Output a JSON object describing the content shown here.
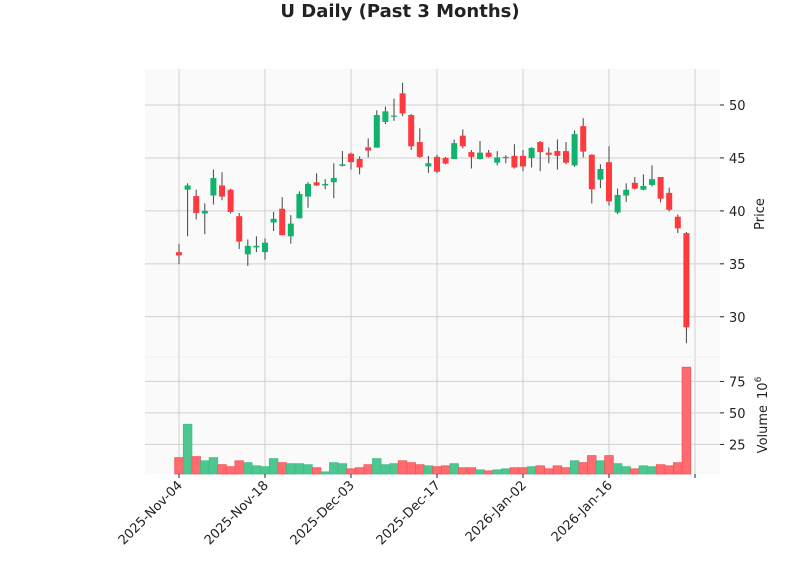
{
  "chart_data": {
    "type": "candlestick",
    "title": "U Daily (Past 3 Months)",
    "price_ylabel": "Price",
    "volume_ylabel": "Volume",
    "volume_unit": "10",
    "volume_unit_exp": "6",
    "price_ylim": [
      26.2,
      53.4
    ],
    "volume_ylim": [
      1.5,
      94.4
    ],
    "price_ticks": [
      30,
      35,
      40,
      45,
      50
    ],
    "volume_ticks": [
      25,
      50,
      75
    ],
    "x_tick_labels": [
      "2025-Nov-04",
      "2025-Nov-18",
      "2025-Dec-03",
      "2025-Dec-17",
      "2026-Jan-02",
      "2026-Jan-16",
      ""
    ],
    "grid": true,
    "colors": {
      "up": "#0fb36c",
      "down": "#fe3a3f",
      "volume_up": "#4cc790",
      "volume_down": "#ff6b6e",
      "wick": "#444444",
      "background": "#fafafa",
      "grid": "#d0d0d0"
    },
    "dates": [
      "2025-11-04",
      "2025-11-05",
      "2025-11-06",
      "2025-11-07",
      "2025-11-10",
      "2025-11-11",
      "2025-11-12",
      "2025-11-13",
      "2025-11-14",
      "2025-11-17",
      "2025-11-18",
      "2025-11-19",
      "2025-11-20",
      "2025-11-21",
      "2025-11-24",
      "2025-11-25",
      "2025-11-26",
      "2025-11-28",
      "2025-12-01",
      "2025-12-02",
      "2025-12-03",
      "2025-12-04",
      "2025-12-05",
      "2025-12-08",
      "2025-12-09",
      "2025-12-10",
      "2025-12-11",
      "2025-12-12",
      "2025-12-15",
      "2025-12-16",
      "2025-12-17",
      "2025-12-18",
      "2025-12-19",
      "2025-12-22",
      "2025-12-23",
      "2025-12-24",
      "2025-12-26",
      "2025-12-29",
      "2025-12-30",
      "2025-12-31",
      "2026-01-02",
      "2026-01-05",
      "2026-01-06",
      "2026-01-07",
      "2026-01-08",
      "2026-01-09",
      "2026-01-12",
      "2026-01-13",
      "2026-01-14",
      "2026-01-15",
      "2026-01-16",
      "2026-01-20",
      "2026-01-21",
      "2026-01-22",
      "2026-01-23",
      "2026-01-26",
      "2026-01-27",
      "2026-01-28",
      "2026-01-29",
      "2026-01-30"
    ],
    "ohlc": [
      [
        36.1,
        36.9,
        35.0,
        35.8
      ],
      [
        42.0,
        42.6,
        37.6,
        42.4
      ],
      [
        41.4,
        42.0,
        39.2,
        39.8
      ],
      [
        39.75,
        40.7,
        37.8,
        40.0
      ],
      [
        41.45,
        43.9,
        40.6,
        43.1
      ],
      [
        42.4,
        43.65,
        41.0,
        41.35
      ],
      [
        42.0,
        42.1,
        39.75,
        39.9
      ],
      [
        39.5,
        39.8,
        36.4,
        37.1
      ],
      [
        35.9,
        37.3,
        34.8,
        36.7
      ],
      [
        36.55,
        37.6,
        36.1,
        36.7
      ],
      [
        36.1,
        37.4,
        35.4,
        37.0
      ],
      [
        38.9,
        39.9,
        38.1,
        39.25
      ],
      [
        40.2,
        41.3,
        37.7,
        37.7
      ],
      [
        37.6,
        39.6,
        36.9,
        38.8
      ],
      [
        39.3,
        41.85,
        39.3,
        41.6
      ],
      [
        41.35,
        42.7,
        40.3,
        42.55
      ],
      [
        42.7,
        43.55,
        42.35,
        42.4
      ],
      [
        42.4,
        43.0,
        42.05,
        42.55
      ],
      [
        42.7,
        44.5,
        41.2,
        43.1
      ],
      [
        44.25,
        45.65,
        44.2,
        44.4
      ],
      [
        45.4,
        45.5,
        43.9,
        44.6
      ],
      [
        44.9,
        45.15,
        43.45,
        44.1
      ],
      [
        46.0,
        46.85,
        45.05,
        45.7
      ],
      [
        45.97,
        49.5,
        45.97,
        49.05
      ],
      [
        48.4,
        49.85,
        48.2,
        49.4
      ],
      [
        48.9,
        50.6,
        48.5,
        49.0
      ],
      [
        51.1,
        52.1,
        48.95,
        49.2
      ],
      [
        49.05,
        49.15,
        45.75,
        46.1
      ],
      [
        46.5,
        47.8,
        45.0,
        45.1
      ],
      [
        44.2,
        45.2,
        43.6,
        44.5
      ],
      [
        45.1,
        45.3,
        43.55,
        43.7
      ],
      [
        45.0,
        45.1,
        44.4,
        44.47
      ],
      [
        44.9,
        46.75,
        44.9,
        46.4
      ],
      [
        47.1,
        47.7,
        45.9,
        46.1
      ],
      [
        45.55,
        45.75,
        44.0,
        45.1
      ],
      [
        44.9,
        46.6,
        44.85,
        45.5
      ],
      [
        45.5,
        45.75,
        45.05,
        45.1
      ],
      [
        44.55,
        45.65,
        44.3,
        45.05
      ],
      [
        45.0,
        45.25,
        44.5,
        45.1
      ],
      [
        45.2,
        46.3,
        44.0,
        44.1
      ],
      [
        45.2,
        45.75,
        43.75,
        44.2
      ],
      [
        45.0,
        46.0,
        44.1,
        45.95
      ],
      [
        46.5,
        46.6,
        43.75,
        45.55
      ],
      [
        45.5,
        46.0,
        44.5,
        45.3
      ],
      [
        45.65,
        46.75,
        43.9,
        45.2
      ],
      [
        45.65,
        46.5,
        44.4,
        44.55
      ],
      [
        44.3,
        47.6,
        44.15,
        47.25
      ],
      [
        48.0,
        48.75,
        45.05,
        45.6
      ],
      [
        45.3,
        45.35,
        40.7,
        42.05
      ],
      [
        42.95,
        44.4,
        42.15,
        43.95
      ],
      [
        44.6,
        46.1,
        40.5,
        40.9
      ],
      [
        39.85,
        42.1,
        39.7,
        41.5
      ],
      [
        41.45,
        42.6,
        40.85,
        42.0
      ],
      [
        42.65,
        43.2,
        42.0,
        42.1
      ],
      [
        42.0,
        43.45,
        41.95,
        42.35
      ],
      [
        42.45,
        44.3,
        42.3,
        43.0
      ],
      [
        43.2,
        43.2,
        40.8,
        41.15
      ],
      [
        41.7,
        42.2,
        39.95,
        40.1
      ],
      [
        39.45,
        39.65,
        37.9,
        38.35
      ],
      [
        37.9,
        38.0,
        27.5,
        29.0
      ]
    ],
    "volume": [
      14.5,
      41,
      15.3,
      12,
      14.5,
      8.9,
      7.3,
      12,
      10.5,
      8,
      7.3,
      13.7,
      10.5,
      9.7,
      9.7,
      8.9,
      6.5,
      3.2,
      10.5,
      9.7,
      5.6,
      6.5,
      8.9,
      13.7,
      8.9,
      9.7,
      12,
      10.5,
      8.9,
      8,
      7.3,
      8,
      9.7,
      6.5,
      6.5,
      4.8,
      4,
      4.8,
      5.6,
      6.5,
      6.5,
      7.3,
      8,
      5.6,
      8,
      6.5,
      12,
      10.5,
      16.1,
      12,
      16.1,
      9.7,
      7.3,
      5.6,
      8,
      7.3,
      8.9,
      8,
      10.5,
      86.3
    ]
  }
}
